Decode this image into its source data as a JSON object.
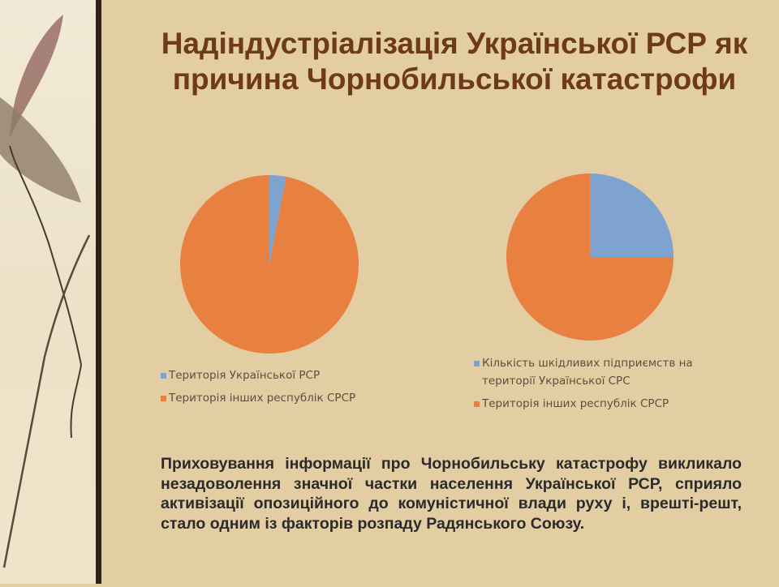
{
  "slide": {
    "title": "Надіндустріалізація Української РСР як причина Чорнобильської катастрофи",
    "body": "Приховування інформації про Чорнобильську катастрофу викликало незадоволення значної частки населення Української РСР, сприяло активізації опозиційного до комуністичної влади руху і, врешті-решт, стало одним із факторів розпаду Радянського Союзу."
  },
  "colors": {
    "blue": "#7ea3cf",
    "orange": "#e8813f",
    "title": "#6e3a1a"
  },
  "chart_data": [
    {
      "type": "pie",
      "categories": [
        "Територія Української РСР",
        "Територія інших республік СРСР"
      ],
      "values": [
        3,
        97
      ],
      "colors": [
        "#7ea3cf",
        "#e8813f"
      ],
      "legend": "bottom"
    },
    {
      "type": "pie",
      "categories": [
        "Кількість шкідливих підприємств на території Української СРС",
        "Територія інших республік СРСР"
      ],
      "values": [
        25,
        75
      ],
      "colors": [
        "#7ea3cf",
        "#e8813f"
      ],
      "legend": "bottom"
    }
  ]
}
